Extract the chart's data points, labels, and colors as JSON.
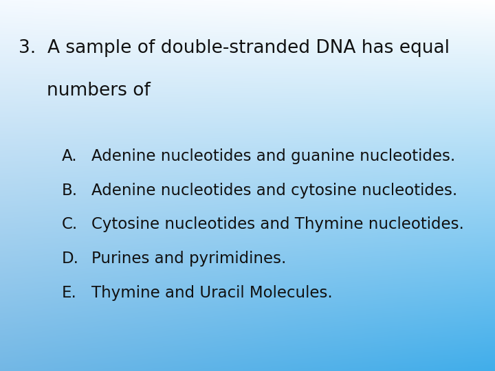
{
  "question_number": "3.",
  "question_text_line1": "A sample of double-stranded DNA has equal",
  "question_text_line2": "numbers of",
  "options": [
    {
      "label": "A.",
      "text": "Adenine nucleotides and guanine nucleotides."
    },
    {
      "label": "B.",
      "text": "Adenine nucleotides and cytosine nucleotides."
    },
    {
      "label": "C.",
      "text": "Cytosine nucleotides and Thymine nucleotides."
    },
    {
      "label": "D.",
      "text": "Purines and pyrimidines."
    },
    {
      "label": "E.",
      "text": "Thymine and Uracil Molecules."
    }
  ],
  "text_color": "#111111",
  "question_fontsize": 19,
  "option_fontsize": 16.5,
  "tl": [
    0.96,
    0.98,
    1.0
  ],
  "tr": [
    1.0,
    1.0,
    1.0
  ],
  "bl": [
    0.45,
    0.72,
    0.9
  ],
  "br": [
    0.25,
    0.68,
    0.92
  ]
}
